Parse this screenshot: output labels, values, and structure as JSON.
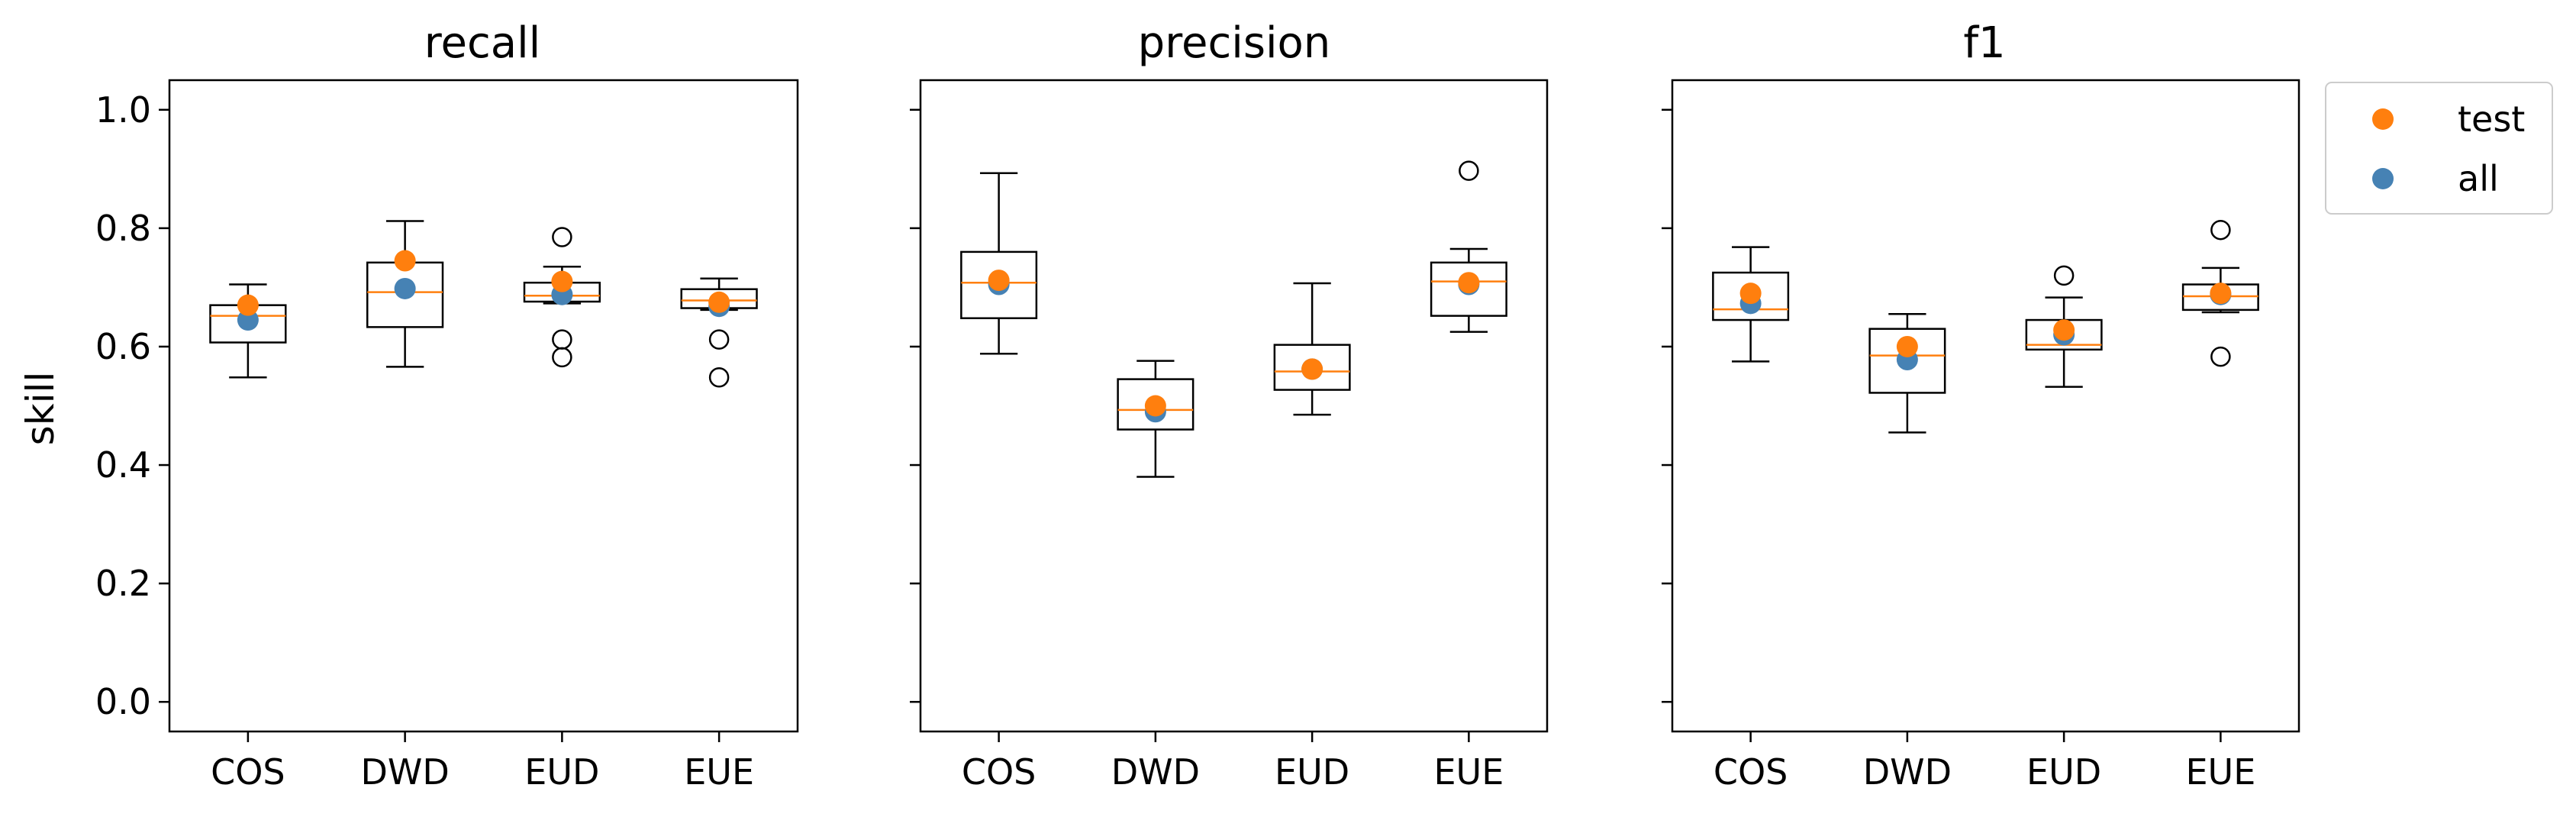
{
  "chart_data": {
    "type": "box",
    "ylabel": "skill",
    "ylim": [
      -0.05,
      1.05
    ],
    "yticks": [
      0.0,
      0.2,
      0.4,
      0.6,
      0.8,
      1.0
    ],
    "ytick_labels": [
      "0.0",
      "0.2",
      "0.4",
      "0.6",
      "0.8",
      "1.0"
    ],
    "categories": [
      "COS",
      "DWD",
      "EUD",
      "EUE"
    ],
    "colors": {
      "test": "#ff7f0e",
      "all": "#4682b4",
      "median": "#ff7f0e",
      "box": "#000000"
    },
    "legend": {
      "placement": "outside-right",
      "entries": [
        "test",
        "all"
      ]
    },
    "panels": [
      {
        "title": "recall",
        "boxes": [
          {
            "category": "COS",
            "whislo": 0.548,
            "q1": 0.607,
            "med": 0.652,
            "q3": 0.67,
            "whishi": 0.705,
            "fliers": [],
            "test": 0.67,
            "all": 0.645
          },
          {
            "category": "DWD",
            "whislo": 0.566,
            "q1": 0.633,
            "med": 0.692,
            "q3": 0.742,
            "whishi": 0.812,
            "fliers": [],
            "test": 0.745,
            "all": 0.698
          },
          {
            "category": "EUD",
            "whislo": 0.673,
            "q1": 0.676,
            "med": 0.686,
            "q3": 0.708,
            "whishi": 0.735,
            "fliers": [
              0.785,
              0.612,
              0.582
            ],
            "test": 0.71,
            "all": 0.688
          },
          {
            "category": "EUE",
            "whislo": 0.662,
            "q1": 0.665,
            "med": 0.678,
            "q3": 0.697,
            "whishi": 0.715,
            "fliers": [
              0.612,
              0.548
            ],
            "test": 0.675,
            "all": 0.668
          }
        ]
      },
      {
        "title": "precision",
        "boxes": [
          {
            "category": "COS",
            "whislo": 0.588,
            "q1": 0.648,
            "med": 0.708,
            "q3": 0.76,
            "whishi": 0.893,
            "fliers": [],
            "test": 0.712,
            "all": 0.705
          },
          {
            "category": "DWD",
            "whislo": 0.38,
            "q1": 0.46,
            "med": 0.493,
            "q3": 0.545,
            "whishi": 0.576,
            "fliers": [],
            "test": 0.5,
            "all": 0.49
          },
          {
            "category": "EUD",
            "whislo": 0.485,
            "q1": 0.527,
            "med": 0.558,
            "q3": 0.603,
            "whishi": 0.707,
            "fliers": [],
            "test": 0.562,
            "all": 0.562
          },
          {
            "category": "EUE",
            "whislo": 0.625,
            "q1": 0.652,
            "med": 0.71,
            "q3": 0.742,
            "whishi": 0.765,
            "fliers": [
              0.897
            ],
            "test": 0.708,
            "all": 0.705
          }
        ]
      },
      {
        "title": "f1",
        "boxes": [
          {
            "category": "COS",
            "whislo": 0.575,
            "q1": 0.645,
            "med": 0.663,
            "q3": 0.725,
            "whishi": 0.768,
            "fliers": [],
            "test": 0.69,
            "all": 0.673
          },
          {
            "category": "DWD",
            "whislo": 0.455,
            "q1": 0.522,
            "med": 0.585,
            "q3": 0.63,
            "whishi": 0.655,
            "fliers": [],
            "test": 0.6,
            "all": 0.578
          },
          {
            "category": "EUD",
            "whislo": 0.532,
            "q1": 0.595,
            "med": 0.603,
            "q3": 0.645,
            "whishi": 0.683,
            "fliers": [
              0.72
            ],
            "test": 0.628,
            "all": 0.62
          },
          {
            "category": "EUE",
            "whislo": 0.658,
            "q1": 0.662,
            "med": 0.685,
            "q3": 0.705,
            "whishi": 0.733,
            "fliers": [
              0.797,
              0.583
            ],
            "test": 0.69,
            "all": 0.688
          }
        ]
      }
    ]
  }
}
